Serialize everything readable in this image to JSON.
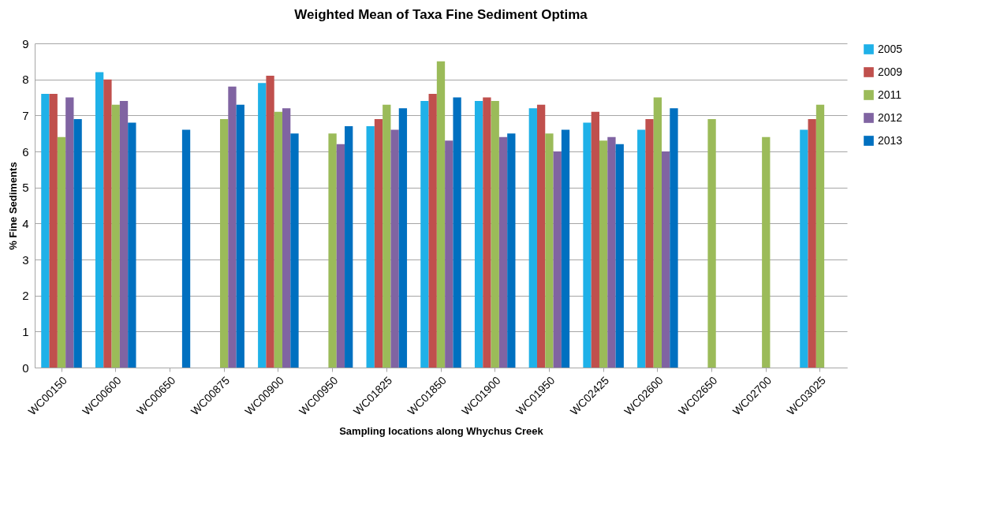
{
  "chart_data": {
    "type": "bar",
    "title": "Weighted Mean of Taxa Fine Sediment Optima",
    "xlabel": "Sampling locations along Whychus Creek",
    "ylabel": "% Fine Sediments",
    "categories": [
      "WC00150",
      "WC00600",
      "WC00650",
      "WC00875",
      "WC00900",
      "WC00950",
      "WC01825",
      "WC01850",
      "WC01900",
      "WC01950",
      "WC02425",
      "WC02600",
      "WC02650",
      "WC02700",
      "WC03025"
    ],
    "series": [
      {
        "name": "2005",
        "color": "#1fb1e8",
        "values": [
          7.6,
          8.2,
          null,
          null,
          7.9,
          null,
          6.7,
          7.4,
          7.4,
          7.2,
          6.8,
          6.6,
          null,
          null,
          6.6
        ]
      },
      {
        "name": "2009",
        "color": "#c0504d",
        "values": [
          7.6,
          8.0,
          null,
          null,
          8.1,
          null,
          6.9,
          7.6,
          7.5,
          7.3,
          7.1,
          6.9,
          null,
          null,
          6.9
        ]
      },
      {
        "name": "2011",
        "color": "#9bbb59",
        "values": [
          6.4,
          7.3,
          null,
          6.9,
          7.1,
          6.5,
          7.3,
          8.5,
          7.4,
          6.5,
          6.3,
          7.5,
          6.9,
          6.4,
          7.3
        ]
      },
      {
        "name": "2012",
        "color": "#8064a2",
        "values": [
          7.5,
          7.4,
          null,
          7.8,
          7.2,
          6.2,
          6.6,
          6.3,
          6.4,
          6.0,
          6.4,
          6.0,
          null,
          null,
          null
        ]
      },
      {
        "name": "2013",
        "color": "#0070c0",
        "values": [
          6.9,
          6.8,
          6.6,
          7.3,
          6.5,
          6.7,
          7.2,
          7.5,
          6.5,
          6.6,
          6.2,
          7.2,
          null,
          null,
          null
        ]
      }
    ],
    "ylim": [
      0,
      9
    ],
    "yticks": [
      0,
      1,
      2,
      3,
      4,
      5,
      6,
      7,
      8,
      9
    ],
    "grid": "y",
    "legend": "right"
  }
}
